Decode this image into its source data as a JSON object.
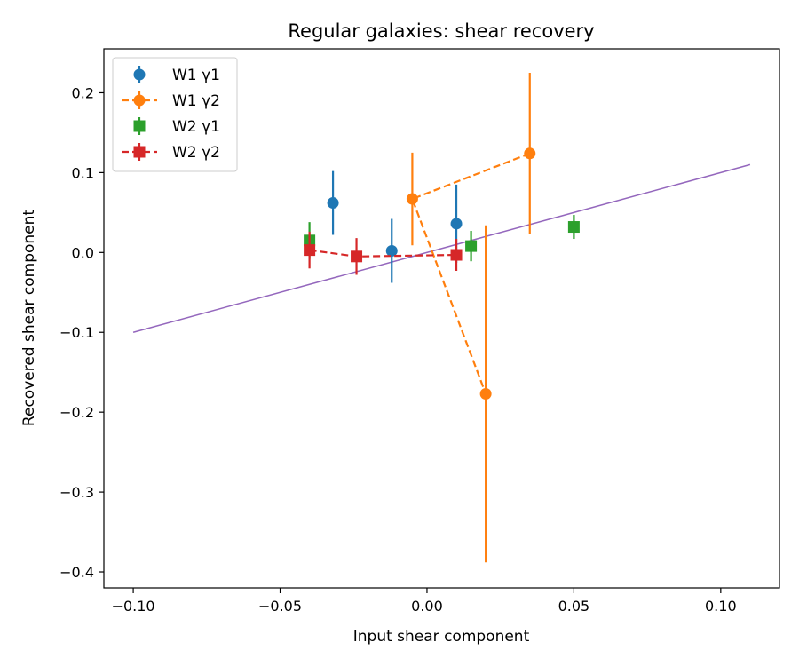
{
  "chart_data": {
    "type": "scatter",
    "title": "Regular galaxies: shear recovery",
    "xlabel": "Input shear component",
    "ylabel": "Recovered shear component",
    "xlim": [
      -0.11,
      0.12
    ],
    "ylim": [
      -0.42,
      0.255
    ],
    "xticks": [
      -0.1,
      -0.05,
      0.0,
      0.05,
      0.1
    ],
    "xtick_labels": [
      "−0.10",
      "−0.05",
      "0.00",
      "0.05",
      "0.10"
    ],
    "yticks": [
      -0.4,
      -0.3,
      -0.2,
      -0.1,
      0.0,
      0.1,
      0.2
    ],
    "ytick_labels": [
      "−0.4",
      "−0.3",
      "−0.2",
      "−0.1",
      "0.0",
      "0.1",
      "0.2"
    ],
    "grid": false,
    "legend_position": "top-left",
    "series": [
      {
        "name": "W1 γ1",
        "color": "#1f77b4",
        "marker": "circle",
        "line": "none",
        "x": [
          -0.032,
          -0.012,
          0.01
        ],
        "y": [
          0.062,
          0.002,
          0.036
        ],
        "yerr": [
          0.04,
          0.04,
          0.049
        ]
      },
      {
        "name": "W1 γ2",
        "color": "#ff7f0e",
        "marker": "circle",
        "line": "dashed",
        "x": [
          0.035,
          -0.005,
          0.02
        ],
        "y": [
          0.124,
          0.067,
          -0.177
        ],
        "yerr": [
          0.101,
          0.058,
          0.211
        ]
      },
      {
        "name": "W2 γ1",
        "color": "#2ca02c",
        "marker": "square",
        "line": "none",
        "x": [
          -0.04,
          0.015,
          0.05
        ],
        "y": [
          0.015,
          0.008,
          0.032
        ],
        "yerr": [
          0.023,
          0.019,
          0.015
        ]
      },
      {
        "name": "W2 γ2",
        "color": "#d62728",
        "marker": "square",
        "line": "dashed",
        "x": [
          -0.04,
          -0.024,
          0.01
        ],
        "y": [
          0.003,
          -0.005,
          -0.003
        ],
        "yerr": [
          0.023,
          0.023,
          0.02
        ]
      }
    ],
    "reference_line": {
      "color": "#9467bd",
      "x": [
        -0.1,
        0.11
      ],
      "y": [
        -0.1,
        0.11
      ]
    }
  }
}
